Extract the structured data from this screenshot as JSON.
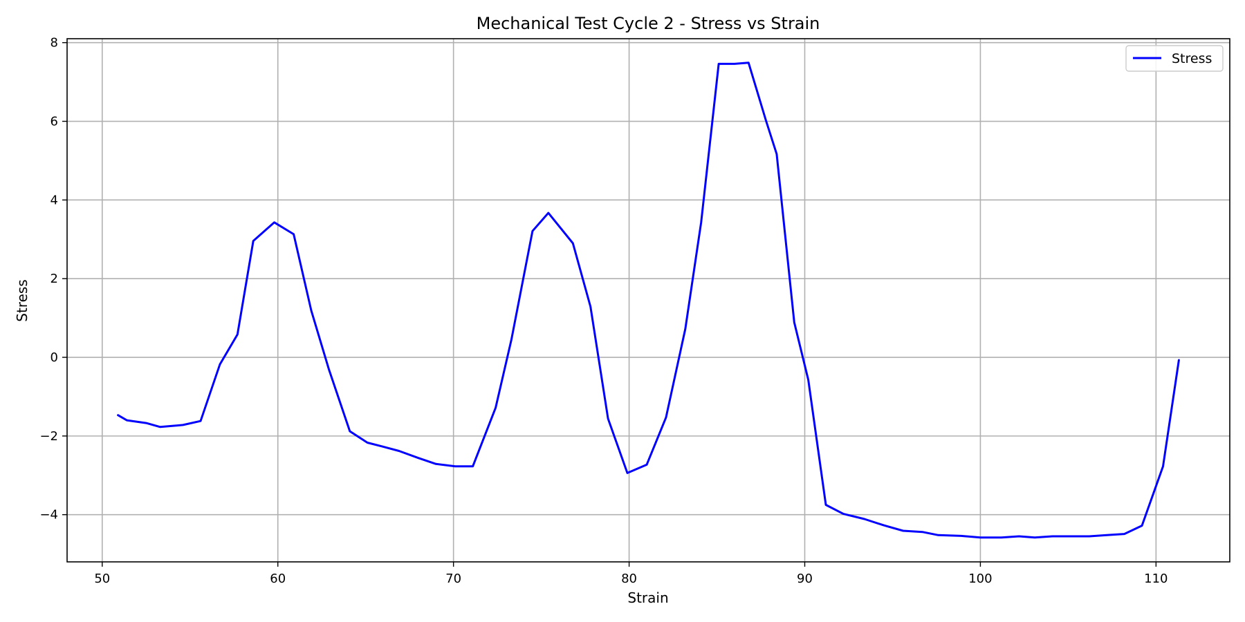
{
  "chart_data": {
    "type": "line",
    "title": "Mechanical Test Cycle 2 - Stress vs Strain",
    "xlabel": "Strain",
    "ylabel": "Stress",
    "xlim": [
      48,
      114.2
    ],
    "ylim": [
      -5.2,
      8.1
    ],
    "xticks": [
      50,
      60,
      70,
      80,
      90,
      100,
      110
    ],
    "yticks": [
      -4,
      -2,
      0,
      2,
      4,
      6,
      8
    ],
    "ytick_labels": [
      "−4",
      "−2",
      "0",
      "2",
      "4",
      "6",
      "8"
    ],
    "grid": true,
    "legend": {
      "position": "top-right",
      "entries": [
        "Stress"
      ]
    },
    "series": [
      {
        "name": "Stress",
        "color": "#0000ff",
        "x": [
          50.9,
          51.4,
          52.5,
          53.3,
          54.6,
          55.6,
          56.7,
          57.7,
          58.6,
          59.8,
          60.9,
          61.9,
          62.9,
          64.1,
          65.1,
          65.9,
          66.9,
          68.0,
          69.0,
          70.1,
          71.1,
          72.4,
          73.3,
          74.5,
          75.4,
          76.8,
          77.8,
          78.8,
          79.9,
          81.0,
          82.1,
          83.2,
          84.1,
          85.1,
          86.0,
          86.8,
          87.8,
          88.4,
          89.4,
          90.2,
          91.2,
          92.2,
          93.4,
          94.5,
          95.6,
          96.7,
          97.6,
          98.9,
          100.0,
          101.2,
          102.2,
          103.1,
          104.1,
          105.2,
          106.2,
          107.2,
          108.2,
          109.2,
          110.4,
          111.3
        ],
        "y": [
          -1.47,
          -1.6,
          -1.67,
          -1.77,
          -1.72,
          -1.62,
          -0.18,
          0.58,
          2.96,
          3.43,
          3.13,
          1.19,
          -0.3,
          -1.88,
          -2.17,
          -2.26,
          -2.38,
          -2.56,
          -2.71,
          -2.77,
          -2.77,
          -1.28,
          0.45,
          3.21,
          3.67,
          2.9,
          1.29,
          -1.56,
          -2.94,
          -2.73,
          -1.53,
          0.72,
          3.43,
          7.46,
          7.46,
          7.49,
          6.01,
          5.17,
          0.89,
          -0.57,
          -3.75,
          -3.98,
          -4.11,
          -4.27,
          -4.41,
          -4.44,
          -4.52,
          -4.54,
          -4.58,
          -4.58,
          -4.55,
          -4.58,
          -4.55,
          -4.55,
          -4.55,
          -4.52,
          -4.49,
          -4.28,
          -2.77,
          -0.07
        ]
      }
    ]
  }
}
